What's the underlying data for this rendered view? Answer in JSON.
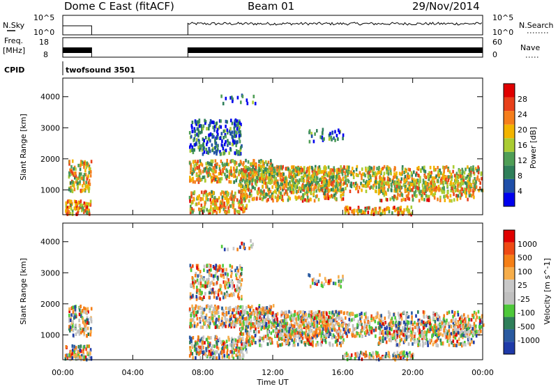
{
  "header": {
    "station": "Dome C East (fitACF)",
    "beam": "Beam 01",
    "date": "29/Nov/2014"
  },
  "aux_panels": {
    "nsky_label": "N.Sky",
    "nsky_top_tick": "10^5",
    "nsky_bottom_tick": "10^0",
    "nsearch_label": "N.Search",
    "nsearch_top_tick": "10^5",
    "nsearch_bottom_tick": "10^0",
    "freq_label_1": "Freq.",
    "freq_label_2": "[MHz]",
    "freq_top_tick": "18",
    "freq_bottom_tick": "8",
    "nave_label": "Nave",
    "nave_top_tick": "60",
    "nave_bottom_tick": "0",
    "cpid_label": "CPID",
    "cpid_value": "twofsound 3501"
  },
  "colors": {
    "power": [
      "#0000ee",
      "#1f4fa8",
      "#2f7f5a",
      "#4f9e56",
      "#aacc33",
      "#f2b400",
      "#f57e1c",
      "#e8401a",
      "#e00000"
    ],
    "velocity": [
      "#e00000",
      "#ee4a14",
      "#f57f16",
      "#f6ad4a",
      "#c8c8c8",
      "#bfbfbf",
      "#4ec83a",
      "#2f7f5a",
      "#2a5aa0",
      "#1e3aa8"
    ]
  },
  "chart_data": [
    {
      "type": "heatmap",
      "quantity": "Power",
      "xlabel": "",
      "ylabel": "Slant Range [km]",
      "xlim_hours": [
        0,
        24
      ],
      "ylim_km": [
        200,
        4600
      ],
      "xticks": [
        "00:00",
        "04:00",
        "08:00",
        "12:00",
        "16:00",
        "20:00",
        "00:00"
      ],
      "yticks": [
        1000,
        2000,
        3000,
        4000
      ],
      "colorbar": {
        "label": "Power [dB]",
        "ticks": [
          "4",
          "8",
          "12",
          "16",
          "20",
          "24",
          "28"
        ],
        "range": [
          0,
          30
        ]
      },
      "data_gaps_hours": [
        [
          1.65,
          7.15
        ]
      ]
    },
    {
      "type": "heatmap",
      "quantity": "Velocity",
      "xlabel": "Time UT",
      "ylabel": "Slant Range [km]",
      "xlim_hours": [
        0,
        24
      ],
      "ylim_km": [
        200,
        4600
      ],
      "xticks": [
        "00:00",
        "04:00",
        "08:00",
        "12:00",
        "16:00",
        "20:00",
        "00:00"
      ],
      "yticks": [
        1000,
        2000,
        3000,
        4000
      ],
      "colorbar": {
        "label": "Velocity [m s^-1]",
        "ticks": [
          "1000",
          "500",
          "100",
          "25",
          "-25",
          "-100",
          "-500",
          "-1000"
        ]
      },
      "data_gaps_hours": [
        [
          1.65,
          7.15
        ]
      ]
    }
  ]
}
